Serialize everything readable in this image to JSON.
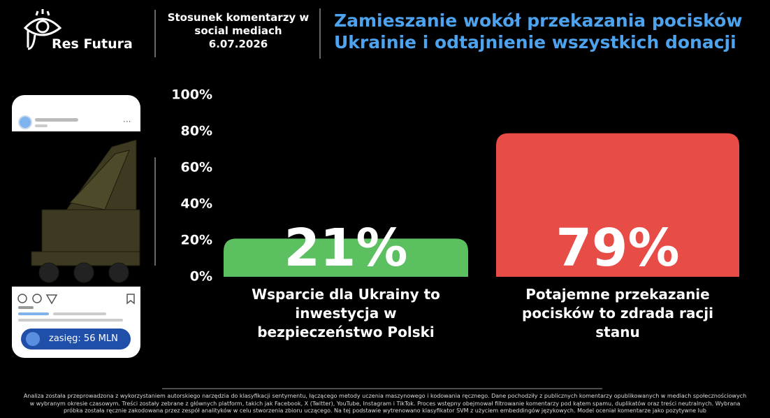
{
  "header": {
    "logo_text": "Res Futura",
    "subtitle": "Stosunek komentarzy w social mediach",
    "date": "6.07.2026",
    "title": "Zamieszanie wokół przekazania pocisków Ukrainie i odtajnienie wszystkich donacji"
  },
  "post": {
    "reach": "zasięg: 56 MLN"
  },
  "chart_data": {
    "type": "bar",
    "categories": [
      "Wsparcie dla Ukrainy to inwestycja w bezpieczeństwo Polski",
      "Potajemne przekazanie pocisków to zdrada racji stanu"
    ],
    "values": [
      21,
      79
    ],
    "value_labels": [
      "21%",
      "79%"
    ],
    "colors": [
      "#5cbf60",
      "#e84c46"
    ],
    "ylim": [
      0,
      100
    ],
    "yticks": [
      {
        "value": 0,
        "label": "0%"
      },
      {
        "value": 20,
        "label": "20%"
      },
      {
        "value": 40,
        "label": "40%"
      },
      {
        "value": 60,
        "label": "60%"
      },
      {
        "value": 80,
        "label": "80%"
      },
      {
        "value": 100,
        "label": "100%"
      }
    ],
    "grid": false
  },
  "footnote": "Analiza została przeprowadzona z wykorzystaniem autorskiego narzędzia do klasyfikacji sentymentu, łączącego metody uczenia maszynowego i kodowania ręcznego. Dane pochodziły z publicznych komentarzy opublikowanych w mediach społecznościowych w wybranym okresie czasowym. Treści zostały zebrane z głównych platform, takich jak Facebook, X (Twitter), YouTube, Instagram i TikTok. Proces wstępny obejmował filtrowanie komentarzy pod kątem spamu, duplikatów oraz treści neutralnych. Wybrana próbka została ręcznie zakodowana przez zespół analityków w celu stworzenia zbioru uczącego. Na tej podstawie wytrenowano klasyfikator SVM z użyciem embeddingów językowych. Model oceniał komentarze jako pozytywne lub"
}
